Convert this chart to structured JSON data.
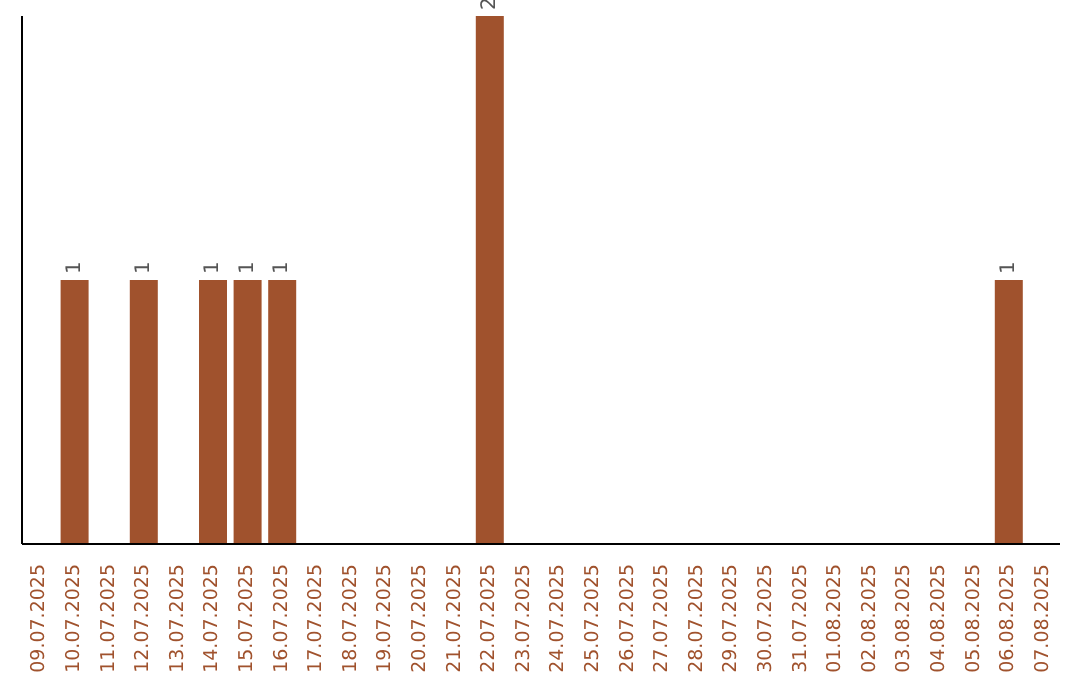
{
  "chart_data": {
    "type": "bar",
    "categories": [
      "09.07.2025",
      "10.07.2025",
      "11.07.2025",
      "12.07.2025",
      "13.07.2025",
      "14.07.2025",
      "15.07.2025",
      "16.07.2025",
      "17.07.2025",
      "18.07.2025",
      "19.07.2025",
      "20.07.2025",
      "21.07.2025",
      "22.07.2025",
      "23.07.2025",
      "24.07.2025",
      "25.07.2025",
      "26.07.2025",
      "27.07.2025",
      "28.07.2025",
      "29.07.2025",
      "30.07.2025",
      "31.07.2025",
      "01.08.2025",
      "02.08.2025",
      "03.08.2025",
      "04.08.2025",
      "05.08.2025",
      "06.08.2025",
      "07.08.2025"
    ],
    "values": [
      0,
      1,
      0,
      1,
      0,
      1,
      1,
      1,
      0,
      0,
      0,
      0,
      0,
      2,
      0,
      0,
      0,
      0,
      0,
      0,
      0,
      0,
      0,
      0,
      0,
      0,
      0,
      0,
      1,
      0
    ],
    "value_labels": [
      null,
      "1",
      null,
      "1",
      null,
      "1",
      "1",
      "1",
      null,
      null,
      null,
      null,
      null,
      "2",
      null,
      null,
      null,
      null,
      null,
      null,
      null,
      null,
      null,
      null,
      null,
      null,
      null,
      null,
      "1",
      null
    ],
    "color": "#a0522d",
    "grid": false
  }
}
